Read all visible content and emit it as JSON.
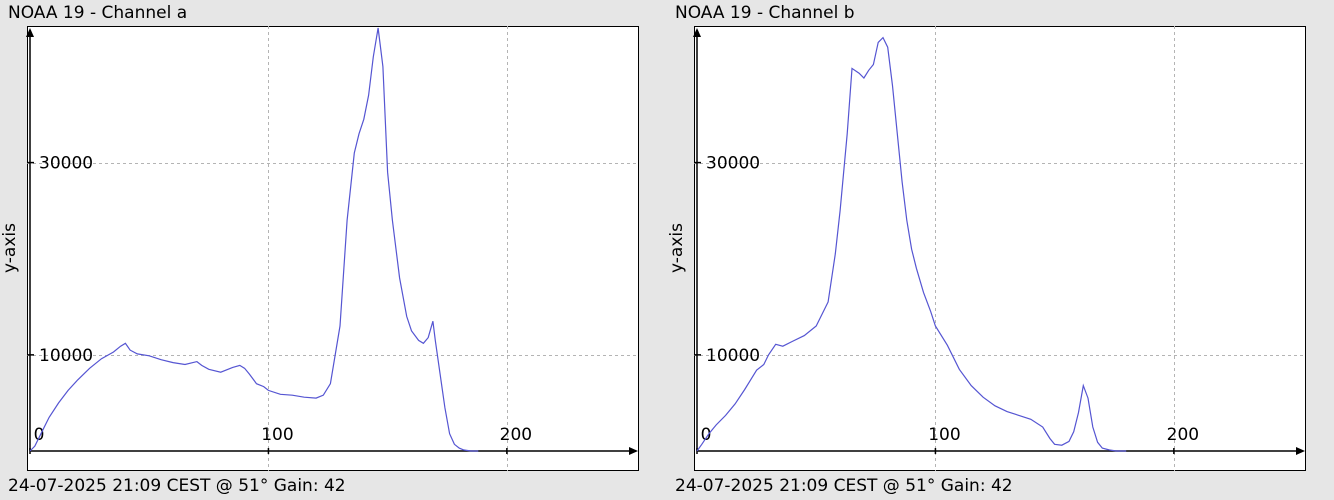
{
  "chart_data": [
    {
      "type": "line",
      "title": "NOAA 19 - Channel a",
      "footer": "24-07-2025 21:09 CEST @ 51° Gain: 42",
      "xlabel": "",
      "ylabel": "y-axis",
      "xlim": [
        0,
        255
      ],
      "ylim": [
        0,
        44000
      ],
      "xticks": [
        0,
        100,
        200
      ],
      "yticks": [
        10000,
        30000
      ],
      "grid": true,
      "series": [
        {
          "color": "#5555d2",
          "x": [
            0,
            2,
            5,
            8,
            12,
            16,
            20,
            25,
            30,
            35,
            38,
            40,
            42,
            45,
            50,
            55,
            60,
            65,
            70,
            72,
            75,
            80,
            85,
            88,
            90,
            92,
            95,
            98,
            100,
            105,
            110,
            115,
            120,
            123,
            126,
            130,
            133,
            136,
            138,
            140,
            142,
            144,
            146,
            148,
            150,
            152,
            155,
            158,
            160,
            163,
            165,
            167,
            169,
            170,
            172,
            174,
            176,
            178,
            180,
            182,
            185,
            188
          ],
          "y": [
            0,
            500,
            2000,
            3500,
            5000,
            6300,
            7400,
            8600,
            9600,
            10300,
            10900,
            11200,
            10500,
            10100,
            9900,
            9500,
            9200,
            9000,
            9300,
            8900,
            8500,
            8200,
            8700,
            8900,
            8600,
            8000,
            7000,
            6700,
            6300,
            5900,
            5800,
            5600,
            5500,
            5800,
            7000,
            13000,
            24000,
            31000,
            33000,
            34500,
            37000,
            41000,
            44000,
            40000,
            29000,
            24000,
            18000,
            14000,
            12500,
            11500,
            11200,
            11800,
            13500,
            11500,
            8000,
            4500,
            1800,
            700,
            300,
            100,
            0,
            0
          ]
        }
      ]
    },
    {
      "type": "line",
      "title": "NOAA 19 - Channel b",
      "footer": "24-07-2025 21:09 CEST @ 51° Gain: 42",
      "xlabel": "",
      "ylabel": "y-axis",
      "xlim": [
        0,
        255
      ],
      "ylim": [
        0,
        44000
      ],
      "xticks": [
        0,
        100,
        200
      ],
      "yticks": [
        10000,
        30000
      ],
      "grid": true,
      "series": [
        {
          "color": "#5555d2",
          "x": [
            0,
            2,
            5,
            8,
            12,
            16,
            20,
            25,
            28,
            30,
            33,
            36,
            40,
            45,
            50,
            55,
            58,
            60,
            63,
            65,
            68,
            70,
            72,
            74,
            76,
            78,
            80,
            82,
            84,
            86,
            88,
            90,
            92,
            95,
            98,
            100,
            105,
            110,
            115,
            120,
            125,
            130,
            135,
            140,
            145,
            148,
            150,
            153,
            156,
            158,
            160,
            162,
            164,
            166,
            168,
            170,
            173,
            176,
            180
          ],
          "y": [
            0,
            700,
            1800,
            2700,
            3700,
            4900,
            6400,
            8400,
            9000,
            10000,
            11100,
            10900,
            11400,
            12000,
            13000,
            15500,
            20500,
            25000,
            33000,
            39800,
            39300,
            38800,
            39600,
            40200,
            42500,
            43000,
            42000,
            38000,
            33000,
            28000,
            24000,
            21000,
            19000,
            16500,
            14500,
            13000,
            11000,
            8500,
            6800,
            5600,
            4700,
            4100,
            3700,
            3300,
            2500,
            1300,
            700,
            600,
            1000,
            2000,
            4000,
            6800,
            5500,
            2500,
            900,
            300,
            100,
            0,
            0
          ]
        }
      ]
    }
  ]
}
